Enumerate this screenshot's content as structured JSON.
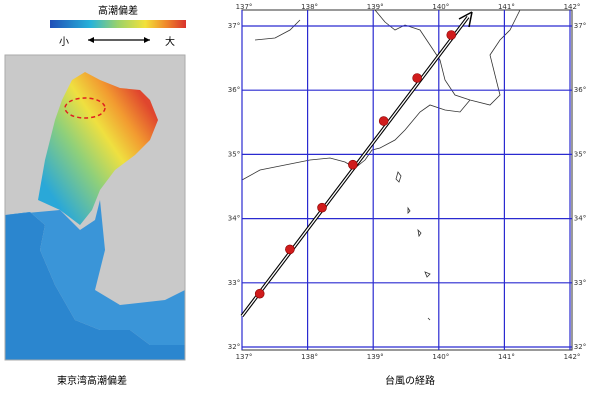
{
  "left_panel": {
    "legend_title": "高潮偏差",
    "legend_low": "小",
    "legend_high": "大",
    "caption": "東京湾高潮偏差"
  },
  "right_panel": {
    "caption": "台風の経路",
    "lon_ticks": [
      {
        "value": 137,
        "label": "137°"
      },
      {
        "value": 138,
        "label": "138°"
      },
      {
        "value": 139,
        "label": "139°"
      },
      {
        "value": 140,
        "label": "140°"
      },
      {
        "value": 141,
        "label": "141°"
      },
      {
        "value": 142,
        "label": "142°"
      }
    ],
    "lat_ticks": [
      {
        "value": 32,
        "label": "32°"
      },
      {
        "value": 33,
        "label": "33°"
      },
      {
        "value": 34,
        "label": "34°"
      },
      {
        "value": 35,
        "label": "35°"
      },
      {
        "value": 36,
        "label": "36°"
      },
      {
        "value": 37,
        "label": "37°"
      }
    ],
    "track": {
      "lon": [
        137.27,
        137.73,
        138.22,
        138.69,
        139.16,
        139.67,
        140.19
      ],
      "lat": [
        32.83,
        33.52,
        34.17,
        34.84,
        35.52,
        36.19,
        36.86
      ]
    }
  }
}
